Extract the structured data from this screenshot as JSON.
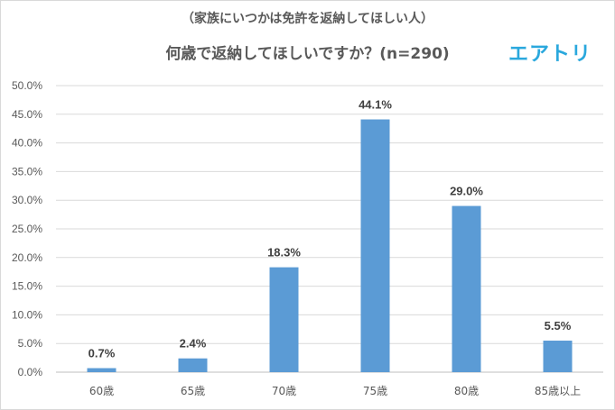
{
  "header": {
    "subtitle": "（家族にいつかは免許を返納してほしい人）",
    "title": "何歳で返納してほしいですか？(n=290)",
    "logo_text": "エアトリ"
  },
  "colors": {
    "bar": "#5b9bd5",
    "grid": "#d9d9d9",
    "axis": "#bfbfbf",
    "logo": "#2aa8dd"
  },
  "chart_data": {
    "type": "bar",
    "title": "何歳で返納してほしいですか？(n=290)",
    "subtitle": "（家族にいつかは免許を返納してほしい人）",
    "categories": [
      "60歳",
      "65歳",
      "70歳",
      "75歳",
      "80歳",
      "85歳以上"
    ],
    "values": [
      0.7,
      2.4,
      18.3,
      44.1,
      29.0,
      5.5
    ],
    "value_labels": [
      "0.7%",
      "2.4%",
      "18.3%",
      "44.1%",
      "29.0%",
      "5.5%"
    ],
    "ylim": [
      0,
      50
    ],
    "yticks": [
      0,
      5,
      10,
      15,
      20,
      25,
      30,
      35,
      40,
      45,
      50
    ],
    "ytick_labels": [
      "0.0%",
      "5.0%",
      "10.0%",
      "15.0%",
      "20.0%",
      "25.0%",
      "30.0%",
      "35.0%",
      "40.0%",
      "45.0%",
      "50.0%"
    ],
    "grid": true,
    "legend": "none"
  }
}
